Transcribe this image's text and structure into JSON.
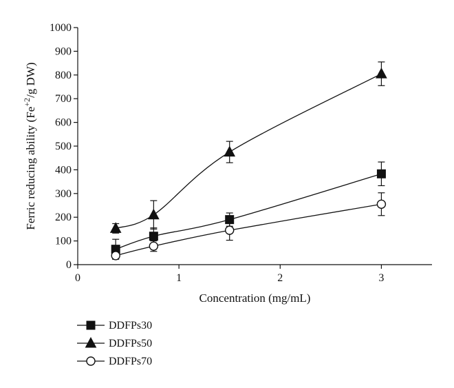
{
  "chart_data": {
    "type": "line",
    "xlabel": "Concentration (mg/mL)",
    "ylabel": "Ferric reducing ability (Fe+2/g DW)",
    "ylabel_parts": {
      "before": "Ferric reducing ability (Fe",
      "sup": "+2",
      "after": "/g DW)"
    },
    "xlim": [
      0,
      3.5
    ],
    "ylim": [
      0,
      1000
    ],
    "x_ticks": [
      0,
      1,
      2,
      3
    ],
    "y_ticks": [
      0,
      100,
      200,
      300,
      400,
      500,
      600,
      700,
      800,
      900,
      1000
    ],
    "x": [
      0.375,
      0.75,
      1.5,
      3
    ],
    "series": [
      {
        "name": "DDFPs30",
        "marker": "square",
        "values": [
          65,
          120,
          190,
          383
        ],
        "errors": [
          42,
          35,
          28,
          50
        ]
      },
      {
        "name": "DDFPs50",
        "marker": "triangle",
        "values": [
          153,
          210,
          475,
          805
        ],
        "errors": [
          20,
          60,
          45,
          50
        ]
      },
      {
        "name": "DDFPs70",
        "marker": "circle-open",
        "values": [
          38,
          78,
          145,
          255
        ],
        "errors": [
          15,
          22,
          42,
          48
        ]
      }
    ],
    "legend_position": "bottom-left",
    "grid": false
  }
}
